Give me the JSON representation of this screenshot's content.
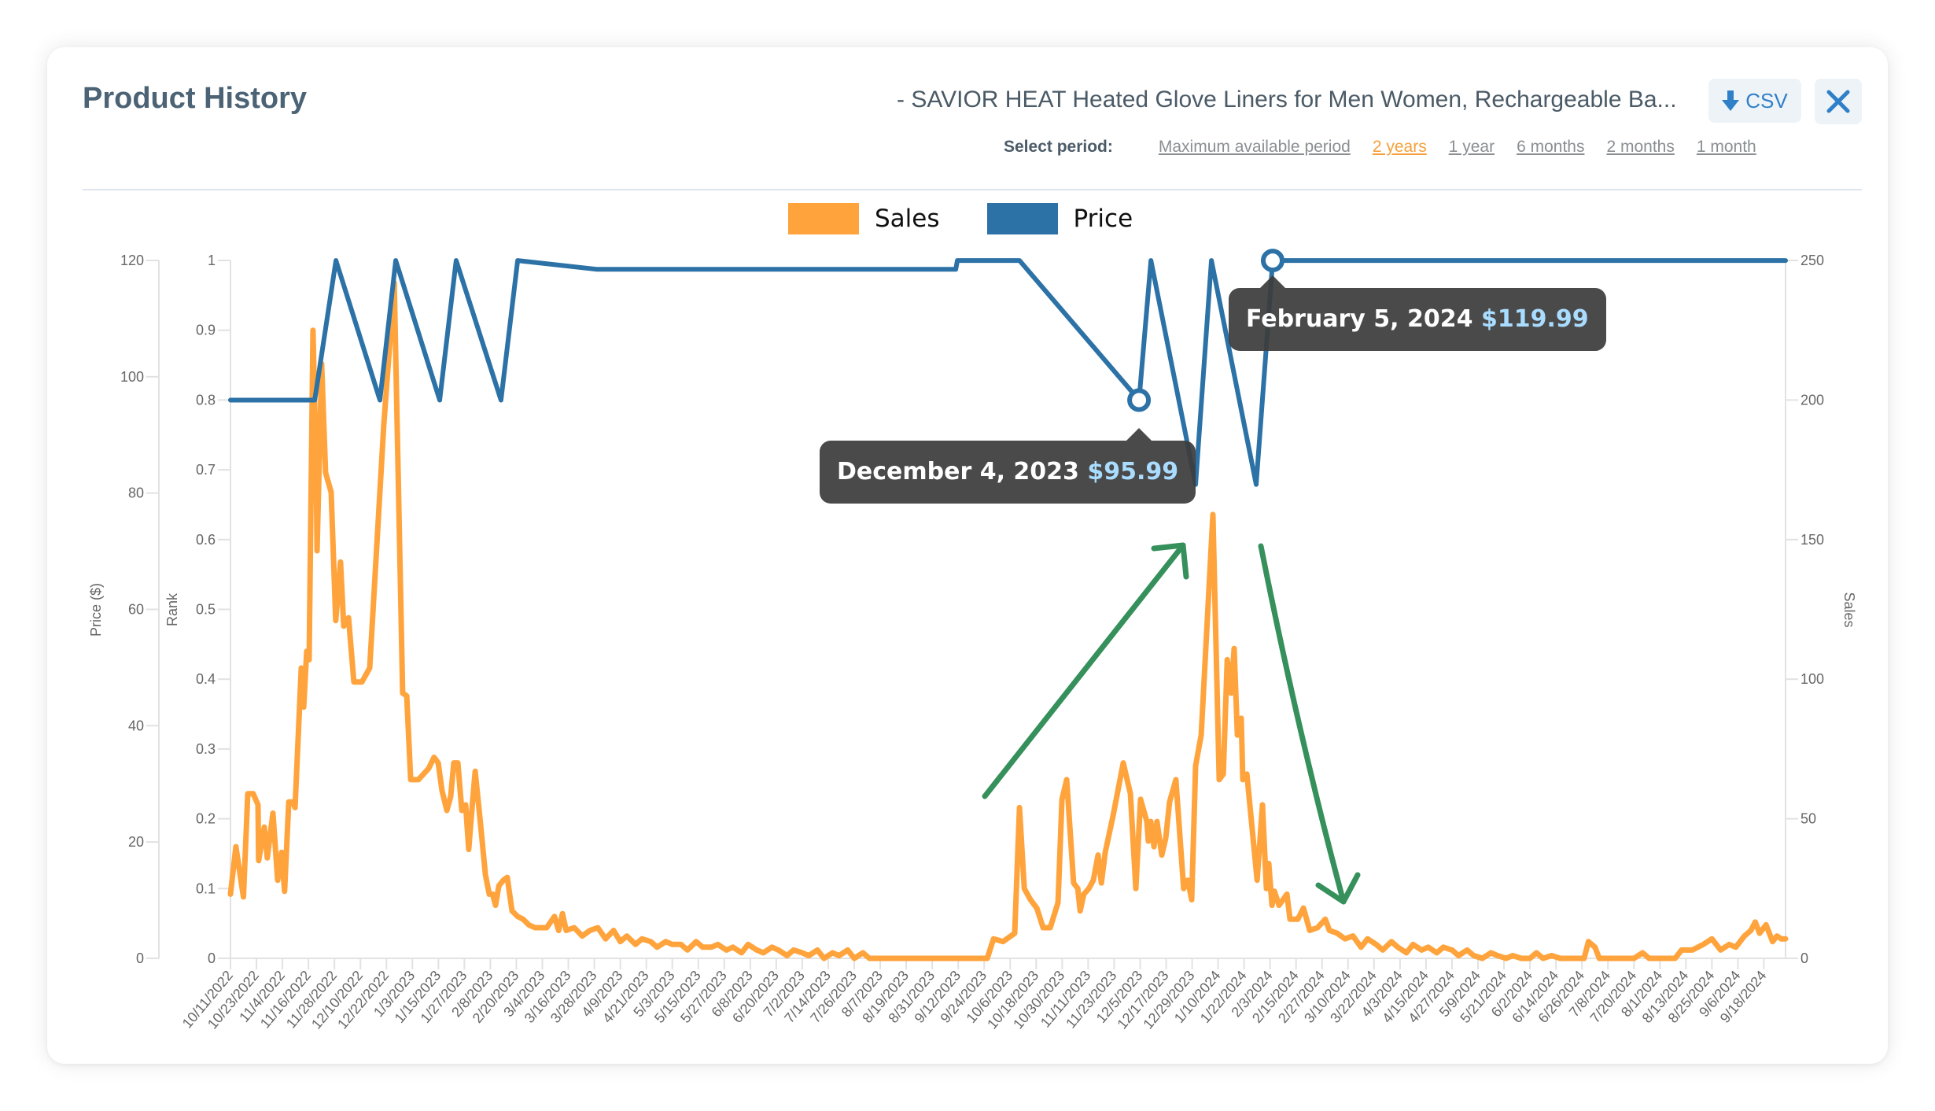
{
  "header": {
    "title": "Product History",
    "product_name": "- SAVIOR HEAT Heated Glove Liners for Men Women, Rechargeable Ba...",
    "csv_label": "CSV",
    "csv_icon": "download-arrow-icon",
    "close_icon": "close-x-icon"
  },
  "period": {
    "label": "Select period:",
    "options": [
      "Maximum available period",
      "2 years",
      "1 year",
      "6 months",
      "2 months",
      "1 month"
    ],
    "selected": "2 years"
  },
  "colors": {
    "sales": "#ffa33c",
    "price": "#2c72a6",
    "annotation_arrow": "#36905c",
    "tooltip_bg": "#3c3c3c",
    "tooltip_price": "#a9dcff"
  },
  "tooltips": [
    {
      "date": "December 4, 2023",
      "price": "$95.99"
    },
    {
      "date": "February 5, 2024",
      "price": "$119.99"
    }
  ],
  "chart_data": {
    "type": "line",
    "title": "Product History",
    "legend": [
      "Sales",
      "Price"
    ],
    "legend_position": "top",
    "grid": false,
    "x_start_date": "10/11/2022",
    "x_day_range": [
      0,
      718
    ],
    "x_tick_labels": [
      "10/11/2022",
      "10/23/2022",
      "11/4/2022",
      "11/16/2022",
      "11/28/2022",
      "12/10/2022",
      "12/22/2022",
      "1/3/2023",
      "1/15/2023",
      "1/27/2023",
      "2/8/2023",
      "2/20/2023",
      "3/4/2023",
      "3/16/2023",
      "3/28/2023",
      "4/9/2023",
      "4/21/2023",
      "5/3/2023",
      "5/15/2023",
      "5/27/2023",
      "6/8/2023",
      "6/20/2023",
      "7/2/2023",
      "7/14/2023",
      "7/26/2023",
      "8/7/2023",
      "8/19/2023",
      "8/31/2023",
      "9/12/2023",
      "9/24/2023",
      "10/6/2023",
      "10/18/2023",
      "10/30/2023",
      "11/11/2023",
      "11/23/2023",
      "12/5/2023",
      "12/17/2023",
      "12/29/2023",
      "1/10/2024",
      "1/22/2024",
      "2/3/2024",
      "2/15/2024",
      "2/27/2024",
      "3/10/2024",
      "3/22/2024",
      "4/3/2024",
      "4/15/2024",
      "4/27/2024",
      "5/9/2024",
      "5/21/2024",
      "6/2/2024",
      "6/14/2024",
      "6/26/2024",
      "7/8/2024",
      "7/20/2024",
      "8/1/2024",
      "8/13/2024",
      "8/25/2024",
      "9/6/2024",
      "9/18/2024"
    ],
    "x_tick_interval_days": 12,
    "axes": {
      "price": {
        "label": "Price ($)",
        "range": [
          0,
          120
        ],
        "ticks": [
          0,
          20,
          40,
          60,
          80,
          100,
          120
        ]
      },
      "rank": {
        "label": "Rank",
        "range": [
          0,
          1
        ],
        "ticks": [
          "0",
          "0.1",
          "0.2",
          "0.3",
          "0.4",
          "0.5",
          "0.6",
          "0.7",
          "0.8",
          "0.9",
          "1"
        ]
      },
      "sales": {
        "label": "Sales",
        "range": [
          0,
          250
        ],
        "ticks": [
          0,
          50,
          100,
          150,
          200,
          250
        ]
      }
    },
    "series": [
      {
        "name": "Price",
        "axis": "price",
        "points_day_value": [
          [
            0,
            95.99
          ],
          [
            38.9,
            95.99
          ],
          [
            48.7,
            119.99
          ],
          [
            69,
            95.99
          ],
          [
            76.3,
            119.99
          ],
          [
            96.6,
            95.99
          ],
          [
            104.2,
            119.99
          ],
          [
            124.9,
            95.99
          ],
          [
            132.6,
            119.99
          ],
          [
            168.9,
            118.49
          ],
          [
            334.9,
            118.49
          ],
          [
            335.6,
            119.99
          ],
          [
            364.3,
            119.99
          ],
          [
            419.5,
            95.99
          ],
          [
            425,
            119.99
          ],
          [
            445.6,
            81.49
          ],
          [
            452.9,
            119.99
          ],
          [
            473.6,
            81.49
          ],
          [
            481.2,
            119.99
          ],
          [
            718,
            119.99
          ]
        ]
      },
      {
        "name": "Sales",
        "axis": "sales",
        "points_day_value": [
          [
            0,
            23
          ],
          [
            2.5,
            40
          ],
          [
            6,
            22
          ],
          [
            8,
            59
          ],
          [
            10.5,
            59
          ],
          [
            12.7,
            55
          ],
          [
            13,
            35
          ],
          [
            15.6,
            47
          ],
          [
            17,
            36
          ],
          [
            19.6,
            52
          ],
          [
            21.8,
            28
          ],
          [
            23.6,
            38
          ],
          [
            25,
            24
          ],
          [
            26.9,
            56
          ],
          [
            28.7,
            56
          ],
          [
            29.8,
            54
          ],
          [
            32.7,
            104
          ],
          [
            33.8,
            90
          ],
          [
            35.2,
            110
          ],
          [
            36.3,
            107
          ],
          [
            38.1,
            225
          ],
          [
            39.6,
            174
          ],
          [
            40,
            146
          ],
          [
            42.1,
            213
          ],
          [
            43.9,
            174
          ],
          [
            46.5,
            167
          ],
          [
            48.6,
            121
          ],
          [
            50.8,
            142
          ],
          [
            52.3,
            119
          ],
          [
            54.5,
            122
          ],
          [
            57,
            99
          ],
          [
            60.7,
            99
          ],
          [
            64.3,
            104
          ],
          [
            70.8,
            191
          ],
          [
            75.6,
            242
          ],
          [
            79.5,
            95
          ],
          [
            81.4,
            94
          ],
          [
            83.2,
            64
          ],
          [
            86.8,
            64
          ],
          [
            91.5,
            68
          ],
          [
            94,
            72
          ],
          [
            95.9,
            70
          ],
          [
            97.7,
            60
          ],
          [
            99.9,
            53
          ],
          [
            101.7,
            58
          ],
          [
            103.1,
            70
          ],
          [
            105,
            70
          ],
          [
            106.8,
            53
          ],
          [
            108.6,
            55
          ],
          [
            110,
            39
          ],
          [
            110.8,
            47
          ],
          [
            113,
            67
          ],
          [
            115.1,
            51
          ],
          [
            117.7,
            30
          ],
          [
            119.5,
            23
          ],
          [
            121,
            23
          ],
          [
            122.4,
            19
          ],
          [
            123.9,
            26
          ],
          [
            126,
            28
          ],
          [
            127.8,
            29
          ],
          [
            130,
            17
          ],
          [
            132.6,
            15
          ],
          [
            135.1,
            14
          ],
          [
            137.7,
            12
          ],
          [
            140.6,
            11
          ],
          [
            146,
            11
          ],
          [
            149.6,
            15
          ],
          [
            151.5,
            10
          ],
          [
            153.3,
            16
          ],
          [
            155,
            10
          ],
          [
            158.7,
            11
          ],
          [
            162.4,
            8
          ],
          [
            166,
            10
          ],
          [
            169.6,
            11
          ],
          [
            173.2,
            7
          ],
          [
            176.9,
            10
          ],
          [
            180,
            6
          ],
          [
            183,
            8
          ],
          [
            187,
            5
          ],
          [
            190,
            7
          ],
          [
            194,
            6
          ],
          [
            197,
            4
          ],
          [
            201,
            6
          ],
          [
            204,
            5
          ],
          [
            208,
            5
          ],
          [
            211,
            3
          ],
          [
            215,
            6
          ],
          [
            218,
            4
          ],
          [
            222,
            4
          ],
          [
            225,
            5
          ],
          [
            229,
            3
          ],
          [
            232,
            4
          ],
          [
            236,
            2
          ],
          [
            239,
            5
          ],
          [
            243,
            3
          ],
          [
            246,
            2
          ],
          [
            250,
            4
          ],
          [
            253,
            3
          ],
          [
            257,
            1
          ],
          [
            260,
            3
          ],
          [
            264,
            2
          ],
          [
            267,
            1
          ],
          [
            271,
            3
          ],
          [
            274,
            0
          ],
          [
            278,
            2
          ],
          [
            281,
            1
          ],
          [
            285,
            3
          ],
          [
            288,
            0
          ],
          [
            292,
            2
          ],
          [
            295,
            0
          ],
          [
            299.6,
            0
          ],
          [
            349.4,
            0
          ],
          [
            352.3,
            7
          ],
          [
            356.7,
            6
          ],
          [
            360.3,
            8
          ],
          [
            362.1,
            9
          ],
          [
            364.3,
            54
          ],
          [
            366.5,
            25
          ],
          [
            369.4,
            21
          ],
          [
            372.3,
            18
          ],
          [
            375.2,
            11
          ],
          [
            378.5,
            11
          ],
          [
            382.1,
            20
          ],
          [
            383.9,
            57
          ],
          [
            386.1,
            64
          ],
          [
            389.3,
            27
          ],
          [
            391.2,
            25
          ],
          [
            392.3,
            17
          ],
          [
            394,
            23
          ],
          [
            396.3,
            25
          ],
          [
            398.4,
            28
          ],
          [
            400.6,
            37
          ],
          [
            402.1,
            27
          ],
          [
            403.9,
            38
          ],
          [
            407.5,
            51
          ],
          [
            412.2,
            70
          ],
          [
            415.5,
            59
          ],
          [
            418,
            25
          ],
          [
            420.2,
            57
          ],
          [
            423.1,
            49
          ],
          [
            423.8,
            42
          ],
          [
            424.9,
            49
          ],
          [
            426.4,
            40
          ],
          [
            427.8,
            49
          ],
          [
            430,
            37
          ],
          [
            431.8,
            43
          ],
          [
            433.6,
            56
          ],
          [
            436.5,
            64
          ],
          [
            440.1,
            25
          ],
          [
            442,
            28
          ],
          [
            443.8,
            21
          ],
          [
            445.6,
            69
          ],
          [
            448.2,
            80
          ],
          [
            453.6,
            159
          ],
          [
            456.5,
            64
          ],
          [
            458.4,
            66
          ],
          [
            460.2,
            107
          ],
          [
            462,
            95
          ],
          [
            463.4,
            111
          ],
          [
            464.9,
            80
          ],
          [
            466.7,
            86
          ],
          [
            467.4,
            64
          ],
          [
            469.3,
            66
          ],
          [
            474,
            28
          ],
          [
            476.5,
            55
          ],
          [
            478.3,
            25
          ],
          [
            479.4,
            34
          ],
          [
            480.9,
            19
          ],
          [
            482,
            24
          ],
          [
            484.1,
            19
          ],
          [
            487.8,
            23
          ],
          [
            489.2,
            14
          ],
          [
            492.8,
            14
          ],
          [
            495.4,
            18
          ],
          [
            498.3,
            10
          ],
          [
            501.9,
            11
          ],
          [
            505.5,
            14
          ],
          [
            507.4,
            10
          ],
          [
            511,
            9
          ],
          [
            514.6,
            7
          ],
          [
            518.3,
            8
          ],
          [
            522,
            4
          ],
          [
            525,
            7
          ],
          [
            529,
            5
          ],
          [
            532,
            3
          ],
          [
            536,
            6
          ],
          [
            539,
            4
          ],
          [
            543,
            2
          ],
          [
            546,
            5
          ],
          [
            550,
            3
          ],
          [
            553,
            4
          ],
          [
            557,
            2
          ],
          [
            560,
            4
          ],
          [
            564,
            3
          ],
          [
            567,
            1
          ],
          [
            571,
            3
          ],
          [
            574,
            1
          ],
          [
            578,
            0
          ],
          [
            582,
            2
          ],
          [
            585,
            1
          ],
          [
            589,
            0
          ],
          [
            592,
            1
          ],
          [
            596,
            0
          ],
          [
            600,
            0
          ],
          [
            603,
            2
          ],
          [
            606,
            0
          ],
          [
            610,
            1
          ],
          [
            614,
            0
          ],
          [
            618,
            0
          ],
          [
            622,
            0
          ],
          [
            625,
            0
          ],
          [
            627,
            6
          ],
          [
            630,
            4
          ],
          [
            632,
            0
          ],
          [
            640,
            0
          ],
          [
            648,
            0
          ],
          [
            652,
            2
          ],
          [
            655,
            0
          ],
          [
            662,
            0
          ],
          [
            667,
            0
          ],
          [
            670,
            3
          ],
          [
            675,
            3
          ],
          [
            680,
            5
          ],
          [
            684,
            7
          ],
          [
            688,
            3
          ],
          [
            692,
            5
          ],
          [
            695,
            4
          ],
          [
            699,
            8
          ],
          [
            702,
            10
          ],
          [
            704,
            13
          ],
          [
            706,
            9
          ],
          [
            709,
            12
          ],
          [
            712,
            6
          ],
          [
            714,
            8
          ],
          [
            716,
            7
          ],
          [
            718,
            7
          ]
        ]
      }
    ],
    "annotations": [
      {
        "type": "tooltip",
        "series": "Price",
        "date": "December 4, 2023",
        "value": 95.99
      },
      {
        "type": "tooltip",
        "series": "Price",
        "date": "February 5, 2024",
        "value": 119.99
      },
      {
        "type": "arrow",
        "direction": "up",
        "color": "#36905c",
        "description": "rising sales before Dec 2023 peak"
      },
      {
        "type": "arrow",
        "direction": "down",
        "color": "#36905c",
        "description": "falling sales after Feb 2024 price increase"
      }
    ]
  }
}
